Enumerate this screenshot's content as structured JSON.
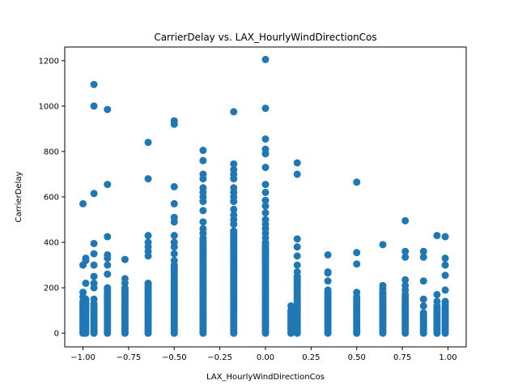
{
  "chart_data": {
    "type": "scatter",
    "title": "CarrierDelay vs. LAX_HourlyWindDirectionCos",
    "xlabel": "LAX_HourlyWindDirectionCos",
    "ylabel": "CarrierDelay",
    "xlim": [
      -1.1,
      1.1
    ],
    "ylim": [
      -60,
      1260
    ],
    "xticks": [
      -1.0,
      -0.75,
      -0.5,
      -0.25,
      0.0,
      0.25,
      0.5,
      0.75,
      1.0
    ],
    "xtick_labels": [
      "−1.00",
      "−0.75",
      "−0.50",
      "−0.25",
      "0.00",
      "0.25",
      "0.50",
      "0.75",
      "1.00"
    ],
    "yticks": [
      0,
      200,
      400,
      600,
      800,
      1000,
      1200
    ],
    "ytick_labels": [
      "0",
      "200",
      "400",
      "600",
      "800",
      "1000",
      "1200"
    ],
    "grid": false,
    "color": "#1f77b4",
    "columns": [
      {
        "x": -1.0,
        "dense_max": 130,
        "outliers": [
          140,
          160,
          180,
          300,
          570
        ]
      },
      {
        "x": -0.985,
        "dense_max": 150,
        "outliers": [
          220,
          320,
          330
        ]
      },
      {
        "x": -0.94,
        "dense_max": 130,
        "outliers": [
          150,
          200,
          220,
          250,
          300,
          350,
          395,
          615,
          1000,
          1095
        ]
      },
      {
        "x": -0.866,
        "dense_max": 200,
        "outliers": [
          260,
          300,
          330,
          345,
          425,
          655,
          985
        ]
      },
      {
        "x": -0.77,
        "dense_max": 200,
        "outliers": [
          220,
          240,
          325
        ]
      },
      {
        "x": -0.643,
        "dense_max": 220,
        "outliers": [
          340,
          360,
          380,
          400,
          430,
          680,
          840
        ]
      },
      {
        "x": -0.5,
        "dense_max": 300,
        "outliers": [
          320,
          350,
          380,
          400,
          430,
          490,
          510,
          570,
          645,
          920,
          935
        ]
      },
      {
        "x": -0.342,
        "dense_max": 420,
        "outliers": [
          440,
          460,
          490,
          540,
          580,
          600,
          620,
          640,
          680,
          700,
          760,
          805
        ]
      },
      {
        "x": -0.174,
        "dense_max": 450,
        "outliers": [
          480,
          500,
          520,
          545,
          580,
          600,
          620,
          640,
          680,
          700,
          720,
          745,
          975
        ]
      },
      {
        "x": 0.0,
        "dense_max": 400,
        "outliers": [
          420,
          440,
          460,
          480,
          500,
          530,
          560,
          585,
          620,
          655,
          730,
          790,
          810,
          855,
          990,
          1205
        ]
      },
      {
        "x": 0.14,
        "dense_max": 100,
        "outliers": [
          120
        ]
      },
      {
        "x": 0.174,
        "dense_max": 250,
        "outliers": [
          270,
          300,
          340,
          380,
          415,
          700,
          750
        ]
      },
      {
        "x": 0.342,
        "dense_max": 180,
        "outliers": [
          190,
          230,
          265,
          270,
          345
        ]
      },
      {
        "x": 0.5,
        "dense_max": 160,
        "outliers": [
          180,
          305,
          355,
          665
        ]
      },
      {
        "x": 0.643,
        "dense_max": 180,
        "outliers": [
          195,
          210,
          390
        ]
      },
      {
        "x": 0.766,
        "dense_max": 170,
        "outliers": [
          190,
          210,
          235,
          335,
          360,
          495
        ]
      },
      {
        "x": 0.866,
        "dense_max": 80,
        "outliers": [
          90,
          120,
          150,
          230,
          335,
          360
        ]
      },
      {
        "x": 0.94,
        "dense_max": 120,
        "outliers": [
          140,
          170,
          430
        ]
      },
      {
        "x": 0.985,
        "dense_max": 140,
        "outliers": [
          190,
          255,
          300,
          330,
          425
        ]
      }
    ]
  }
}
